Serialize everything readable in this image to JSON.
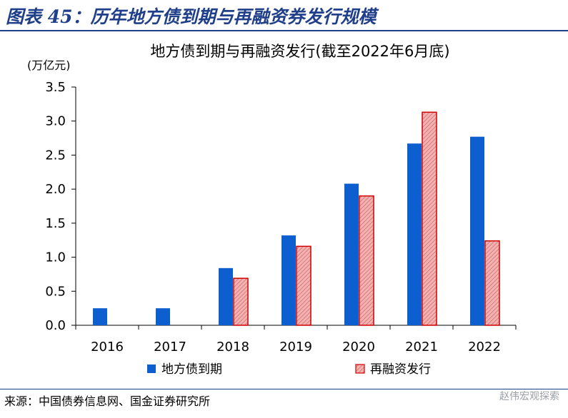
{
  "header": {
    "figure_title": "图表 45：历年地方债到期与再融资券发行规模"
  },
  "chart_data": {
    "type": "bar",
    "title": "地方债到期与再融资发行(截至2022年6月底)",
    "ylabel": "(万亿元)",
    "xlabel": "",
    "categories": [
      "2016",
      "2017",
      "2018",
      "2019",
      "2020",
      "2021",
      "2022"
    ],
    "series": [
      {
        "name": "地方债到期",
        "values": [
          0.25,
          0.25,
          0.84,
          1.32,
          2.08,
          2.67,
          2.77
        ],
        "color": "#0d5fd0"
      },
      {
        "name": "再融资发行",
        "values": [
          null,
          null,
          0.69,
          1.16,
          1.9,
          3.13,
          1.24
        ],
        "color": "#e88c8c",
        "edge_color": "#d00000",
        "pattern": "hatched"
      }
    ],
    "ylim": [
      0,
      3.5
    ],
    "yticks": [
      "0.0",
      "0.5",
      "1.0",
      "1.5",
      "2.0",
      "2.5",
      "3.0",
      "3.5"
    ],
    "grid": false,
    "legend_position": "bottom"
  },
  "footer": {
    "source": "来源：中国债券信息网、国金证券研究所",
    "watermark": "赵伟宏观探索"
  }
}
